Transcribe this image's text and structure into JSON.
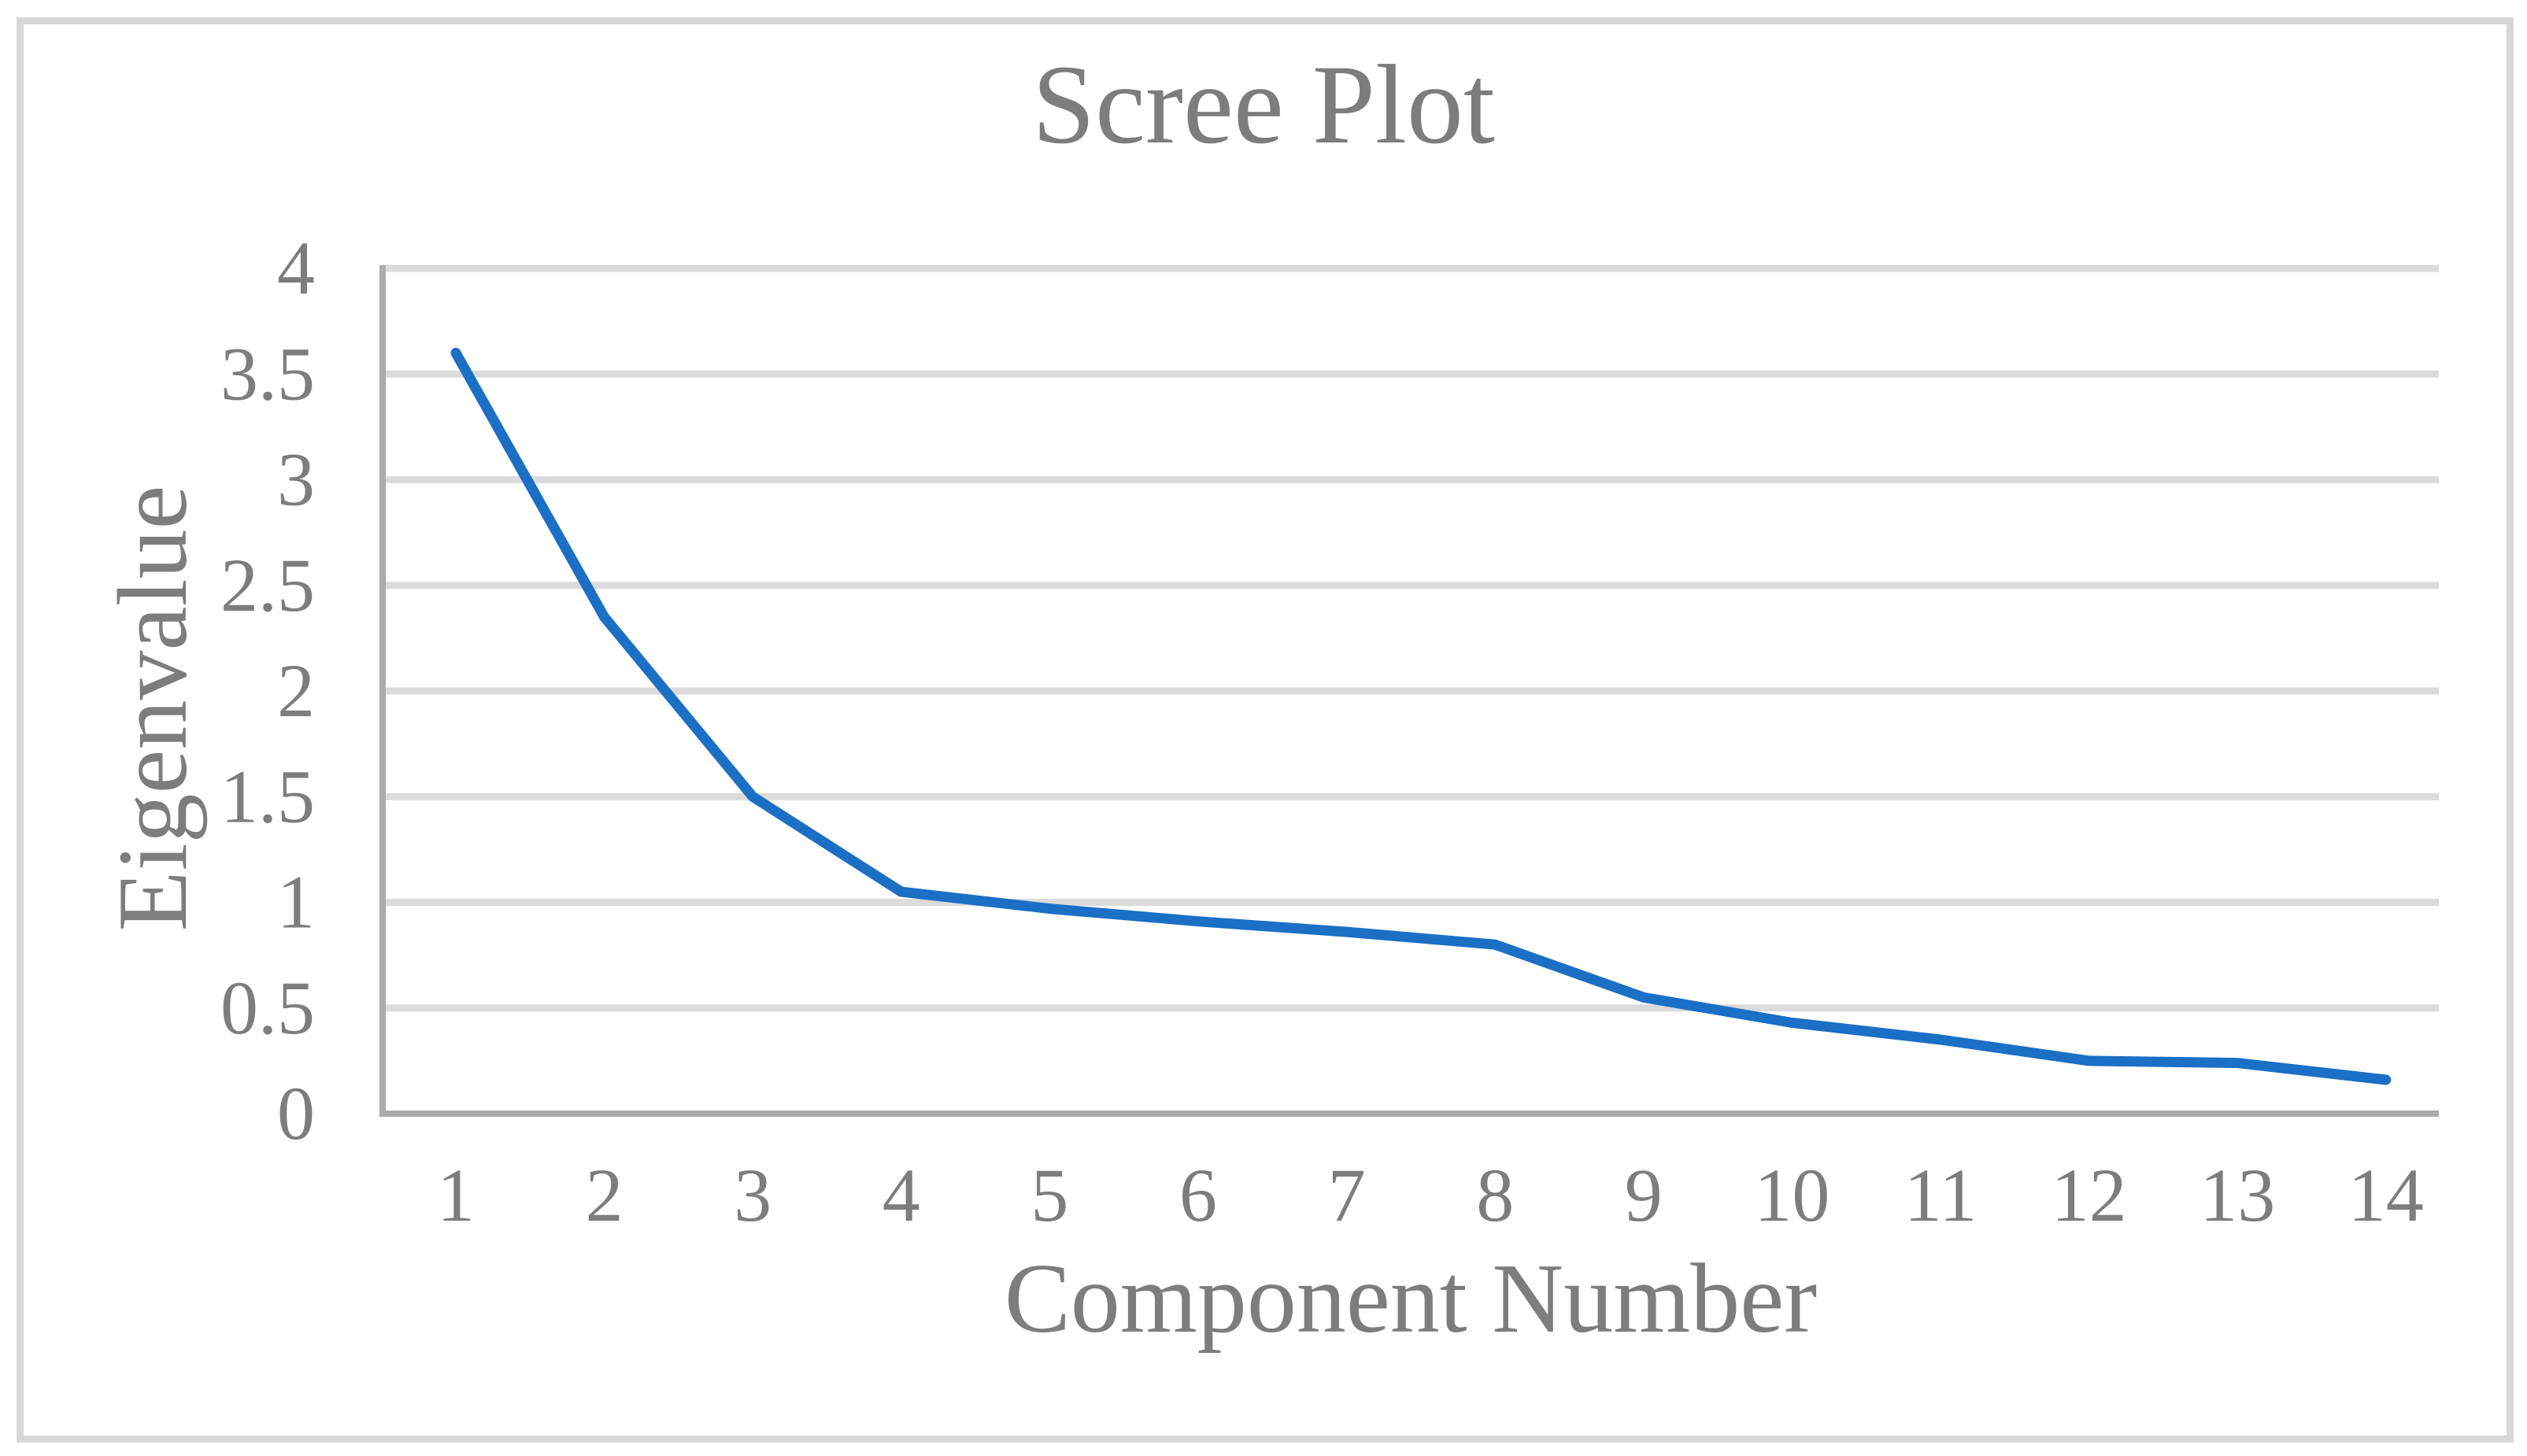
{
  "chart_data": {
    "type": "line",
    "title": "Scree Plot",
    "xlabel": "Component Number",
    "ylabel": "Eigenvalue",
    "categories": [
      "1",
      "2",
      "3",
      "4",
      "5",
      "6",
      "7",
      "8",
      "9",
      "10",
      "11",
      "12",
      "13",
      "14"
    ],
    "series": [
      {
        "name": "Eigenvalue",
        "values": [
          3.6,
          2.35,
          1.5,
          1.05,
          0.97,
          0.91,
          0.86,
          0.8,
          0.55,
          0.43,
          0.35,
          0.25,
          0.24,
          0.16
        ]
      }
    ],
    "ylim": [
      0,
      4
    ],
    "y_tick_labels": [
      "0",
      "0.5",
      "1",
      "1.5",
      "2",
      "2.5",
      "3",
      "3.5",
      "4"
    ],
    "grid": "horizontal",
    "legend": "none",
    "colors": {
      "line": "#1b6fc5",
      "text": "#7d7d7d",
      "gridline": "#dbdbdb",
      "axis": "#ababab",
      "frame": "#d8d8d8",
      "background": "#ffffff"
    }
  }
}
